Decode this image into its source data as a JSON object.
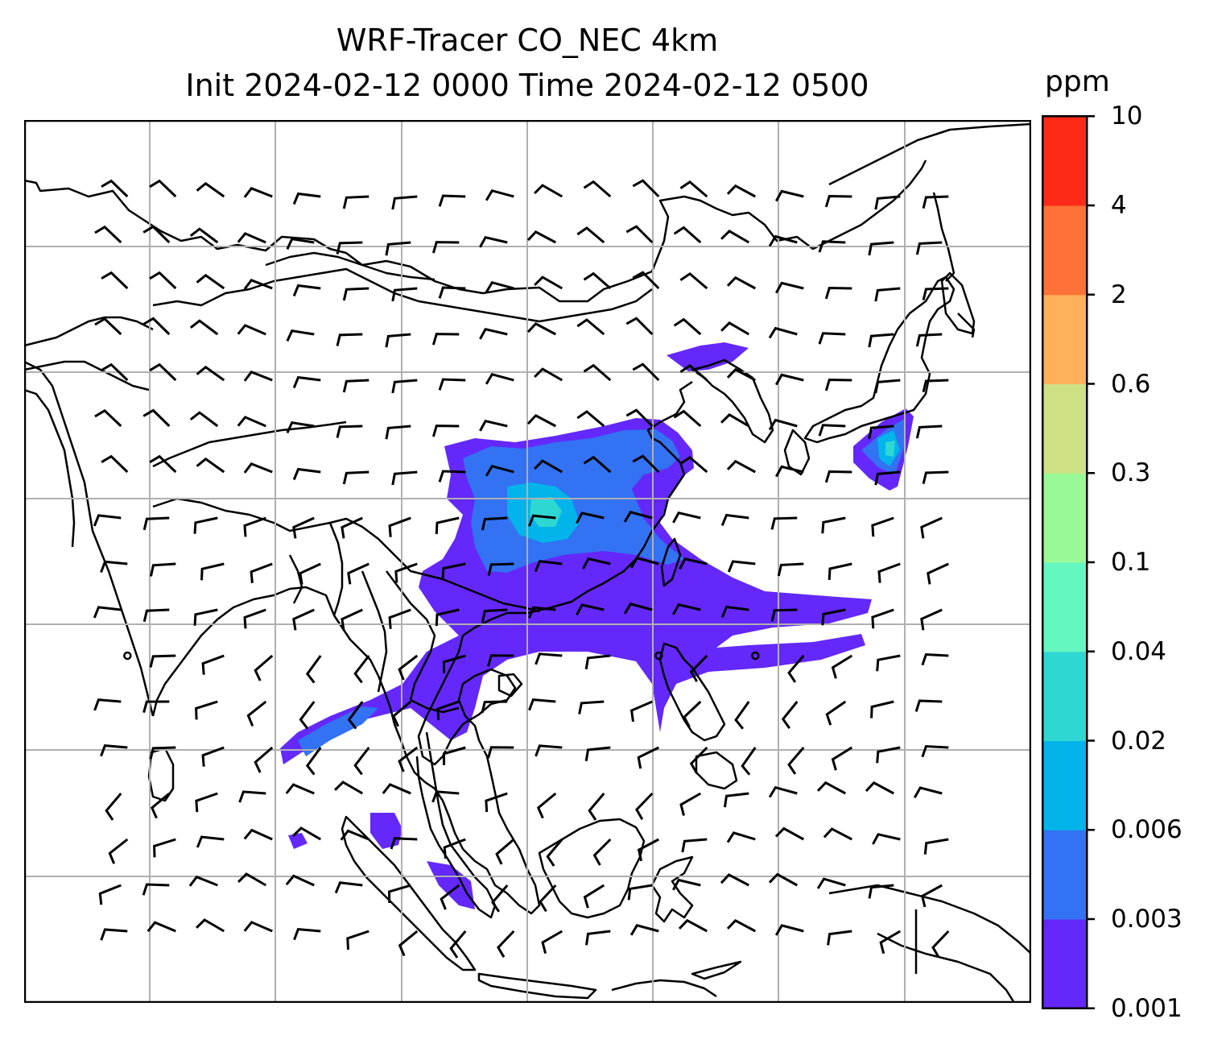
{
  "title": {
    "line1": "WRF-Tracer CO_NEC 4km",
    "line2": "Init 2024-02-12 0000 Time 2024-02-12 0500"
  },
  "colorbar": {
    "unit": "ppm",
    "levels": [
      "0.001",
      "0.003",
      "0.006",
      "0.02",
      "0.04",
      "0.1",
      "0.3",
      "0.6",
      "2",
      "4",
      "10"
    ],
    "colors": [
      "#6428fa",
      "#3272f3",
      "#02b4ea",
      "#2fd7d3",
      "#64f7c0",
      "#99f996",
      "#cfe185",
      "#feb05b",
      "#fe7137",
      "#fe2a17"
    ]
  },
  "map": {
    "land_line_color": "#000000",
    "grid_color": "#b0b0b0",
    "wind_barb_color": "#000000"
  }
}
